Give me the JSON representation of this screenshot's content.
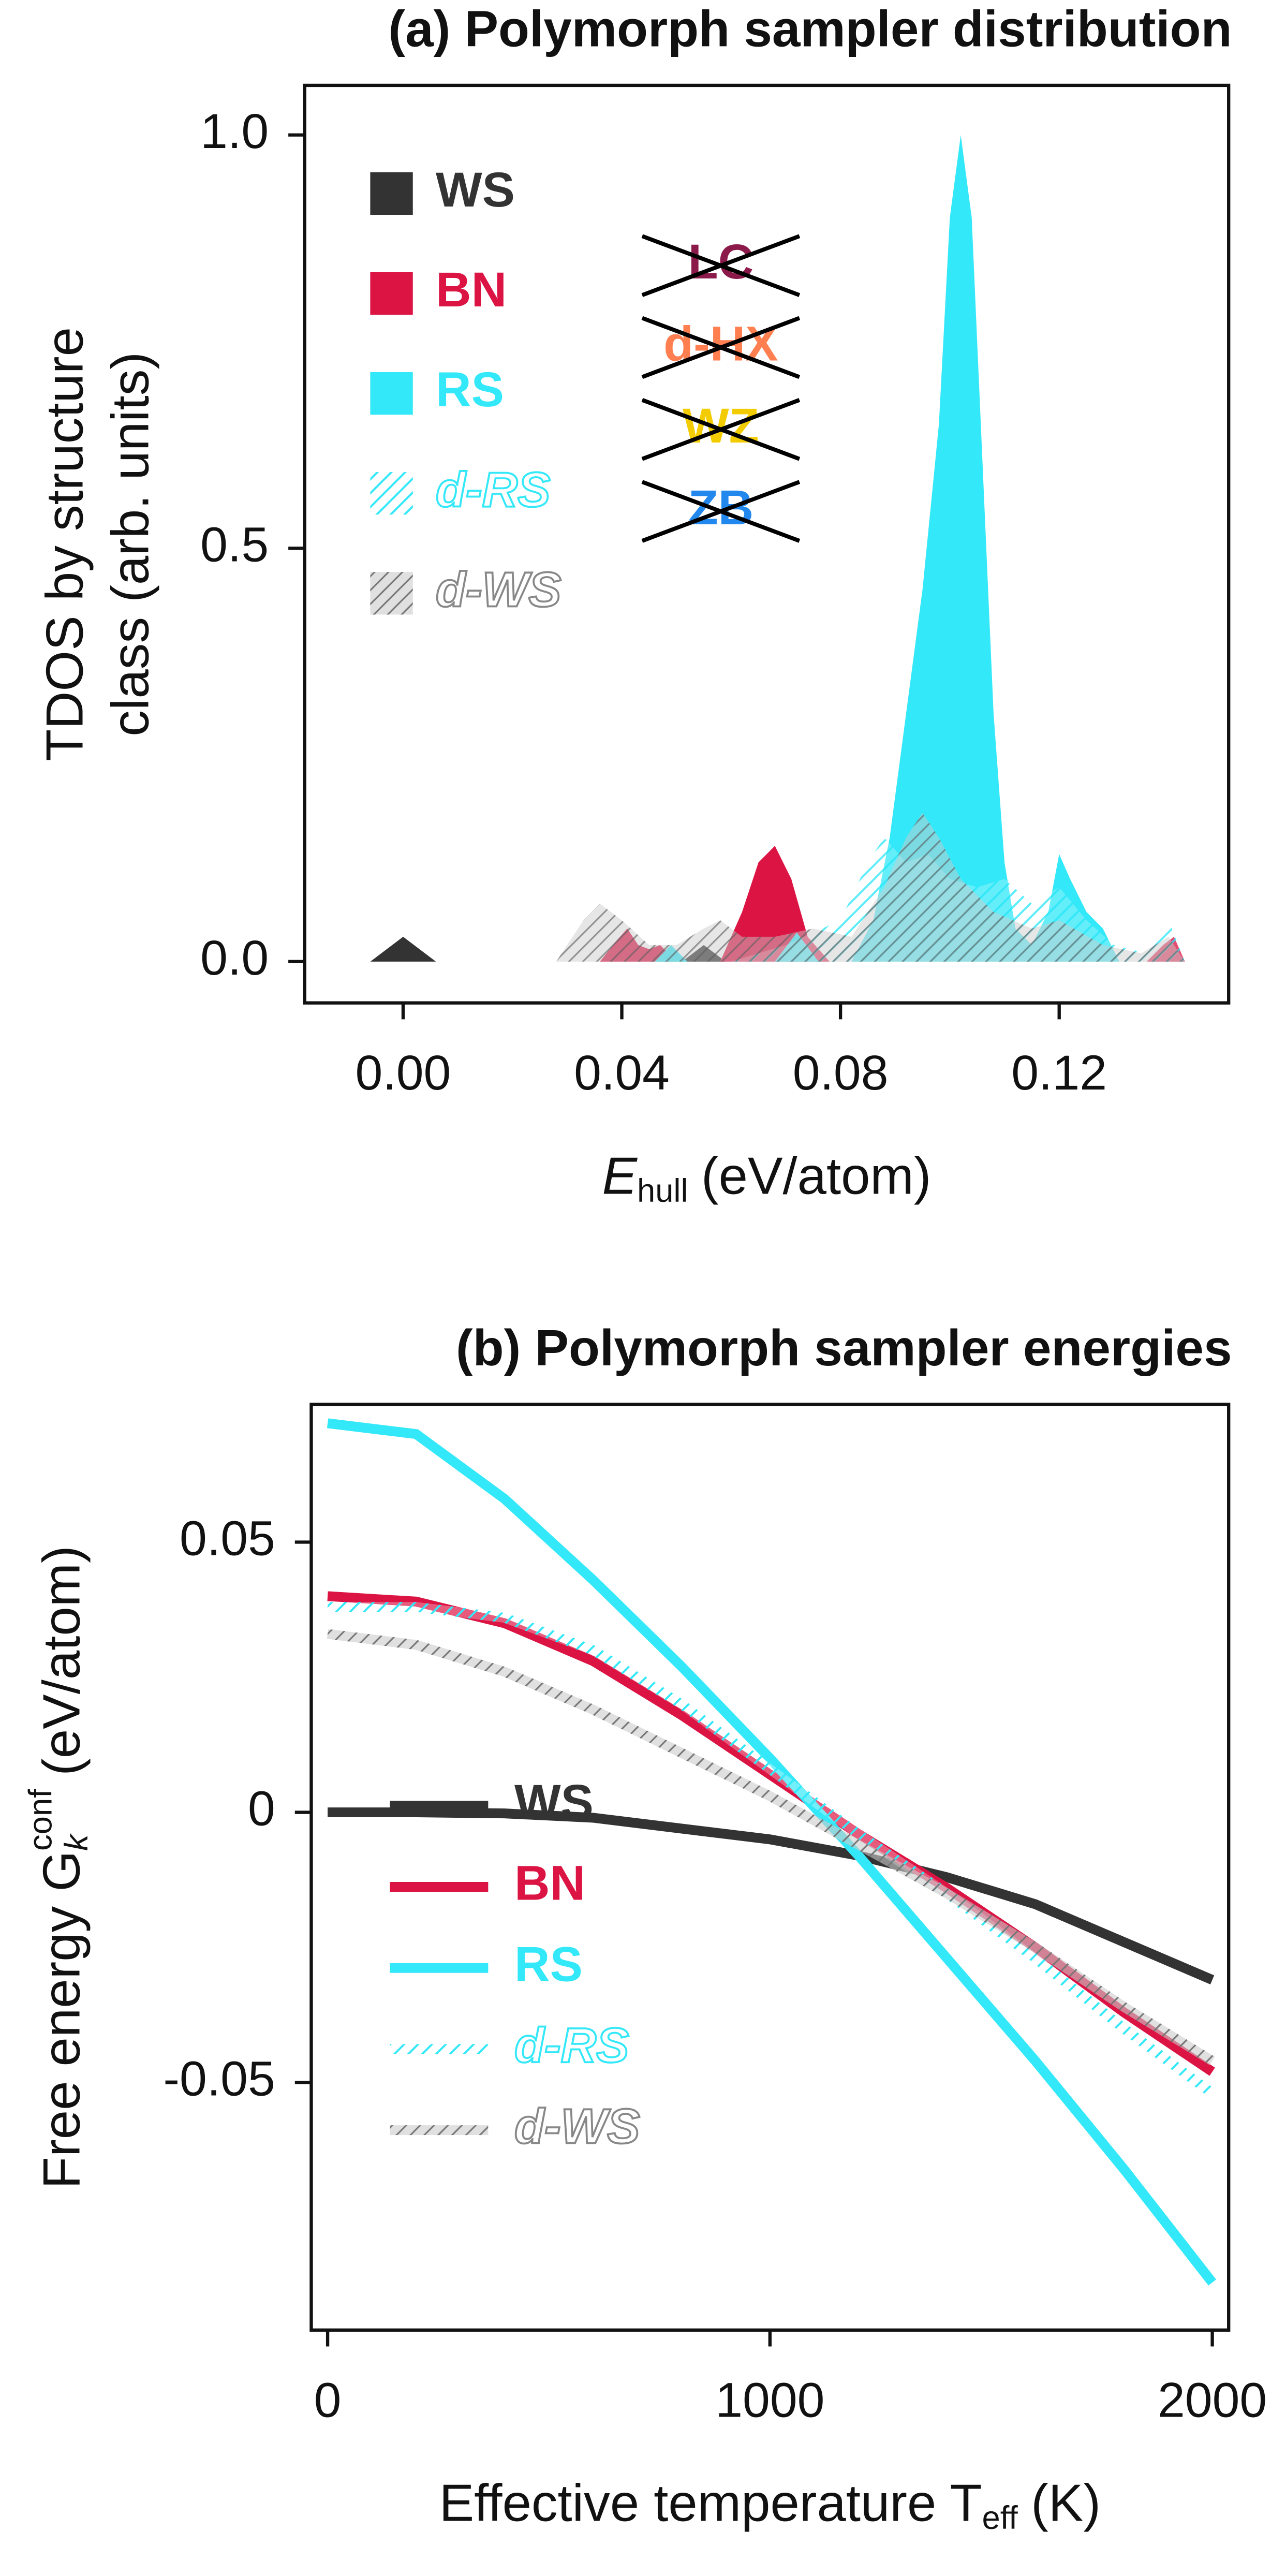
{
  "chart_data": [
    {
      "type": "area",
      "title": "(a) Polymorph sampler distribution",
      "xlabel": {
        "symbol": "E",
        "sub": "hull",
        "unit": "(eV/atom)"
      },
      "ylabel": [
        "TDOS by structure",
        "class (arb. units)"
      ],
      "xlim": [
        -0.018,
        0.151
      ],
      "ylim": [
        -0.05,
        1.06
      ],
      "xticks": [
        {
          "value": 0,
          "label": "0.00"
        },
        {
          "value": 0.04,
          "label": "0.04"
        },
        {
          "value": 0.08,
          "label": "0.08"
        },
        {
          "value": 0.12,
          "label": "0.12"
        }
      ],
      "yticks": [
        {
          "value": 0,
          "label": "0.0"
        },
        {
          "value": 0.5,
          "label": "0.5"
        },
        {
          "value": 1,
          "label": "1.0"
        }
      ],
      "legend": "upper left",
      "series": [
        {
          "name": "WS",
          "color": "#333333",
          "hatched": false,
          "x": [
            -0.006,
            -0.003,
            0,
            0.003,
            0.006,
            null,
            0.051,
            0.053,
            0.055,
            0.057,
            0.059
          ],
          "values": [
            0,
            0.015,
            0.03,
            0.015,
            0,
            null,
            0,
            0.01,
            0.02,
            0.01,
            0
          ]
        },
        {
          "name": "BN",
          "color": "#dc1444",
          "hatched": false,
          "x": [
            0.036,
            0.039,
            0.041,
            0.043,
            0.045,
            0.047,
            0.05,
            null,
            0.058,
            0.062,
            0.065,
            0.068,
            0.071,
            0.074,
            0.078,
            null,
            0.136,
            0.139,
            0.141,
            0.143
          ],
          "values": [
            0,
            0.025,
            0.04,
            0.02,
            0.015,
            0.02,
            0,
            null,
            0,
            0.06,
            0.12,
            0.14,
            0.1,
            0.03,
            0,
            null,
            0,
            0.02,
            0.03,
            0
          ]
        },
        {
          "name": "RS",
          "color": "#33e8f8",
          "hatched": false,
          "x": [
            0.046,
            0.049,
            0.052,
            null,
            0.068,
            0.072,
            0.076,
            null,
            0.082,
            0.086,
            0.089,
            0.092,
            0.095,
            0.098,
            0.1,
            0.102,
            0.104,
            0.106,
            0.108,
            0.11,
            0.112,
            0.115,
            0.118,
            0.12,
            0.122,
            0.125,
            0.128,
            0.131
          ],
          "values": [
            0,
            0.02,
            0,
            null,
            0,
            0.035,
            0,
            null,
            0,
            0.05,
            0.15,
            0.3,
            0.45,
            0.65,
            0.9,
            1.0,
            0.9,
            0.6,
            0.3,
            0.12,
            0.04,
            0.02,
            0.06,
            0.13,
            0.1,
            0.06,
            0.04,
            0
          ]
        },
        {
          "name": "d-RS",
          "color": "#33e8f8",
          "hatched": true,
          "x": [
            0.06,
            0.07,
            0.08,
            0.085,
            0.088,
            0.092,
            0.096,
            0.1,
            0.105,
            0.11,
            0.115,
            0.12,
            0.125,
            0.13,
            0.136,
            0.14,
            0.143
          ],
          "values": [
            0,
            0.02,
            0.05,
            0.12,
            0.15,
            0.12,
            0.13,
            0.1,
            0.09,
            0.1,
            0.07,
            0.09,
            0.05,
            0.02,
            0.01,
            0.05,
            0
          ]
        },
        {
          "name": "d-WS",
          "color": "#888888",
          "hatched": true,
          "x": [
            0.028,
            0.033,
            0.036,
            0.04,
            0.045,
            0.05,
            0.055,
            0.058,
            0.062,
            0.068,
            0.075,
            0.082,
            0.088,
            0.092,
            0.095,
            0.098,
            0.102,
            0.108,
            0.115,
            0.12,
            0.128,
            0.135,
            0.14,
            0.143
          ],
          "values": [
            0,
            0.05,
            0.07,
            0.05,
            0.02,
            0.02,
            0.04,
            0.05,
            0.03,
            0.03,
            0.04,
            0.03,
            0.09,
            0.15,
            0.18,
            0.15,
            0.1,
            0.06,
            0.04,
            0.05,
            0.02,
            0.01,
            0.03,
            0
          ]
        }
      ],
      "excluded": [
        {
          "text": "LC",
          "color": "#8b1a4a"
        },
        {
          "text": "d-HX",
          "color": "#ff7f50"
        },
        {
          "text": "WZ",
          "color": "#f2cc00"
        },
        {
          "text": "ZB",
          "color": "#2288ee"
        }
      ]
    },
    {
      "type": "line",
      "title": "(b) Polymorph sampler energies",
      "xlabel": {
        "symbol": "Effective temperature T",
        "sub": "eff",
        "unit": "(K)"
      },
      "ylabel": {
        "text": "Free energy G",
        "sub": "k",
        "sup": "conf",
        "unit": "(eV/atom)"
      },
      "xlim": [
        -37,
        2037
      ],
      "ylim": [
        -0.0958,
        0.0755
      ],
      "xticks": [
        0,
        1000,
        2000
      ],
      "yticks": [
        {
          "value": -0.05,
          "label": "-0.05"
        },
        0,
        0.05
      ],
      "legend": "lower left",
      "x": [
        0,
        200,
        400,
        600,
        800,
        1000,
        1200,
        1400,
        1600,
        1800,
        2000
      ],
      "series": [
        {
          "name": "WS",
          "color": "#333333",
          "hatched": false,
          "values": [
            0,
            0,
            -0.0002,
            -0.001,
            -0.003,
            -0.005,
            -0.008,
            -0.012,
            -0.017,
            -0.024,
            -0.031
          ]
        },
        {
          "name": "BN",
          "color": "#dc1444",
          "hatched": false,
          "values": [
            0.04,
            0.039,
            0.035,
            0.028,
            0.018,
            0.007,
            -0.004,
            -0.014,
            -0.025,
            -0.037,
            -0.048
          ]
        },
        {
          "name": "RS",
          "color": "#33e8f8",
          "hatched": false,
          "values": [
            0.072,
            0.07,
            0.058,
            0.043,
            0.027,
            0.01,
            -0.008,
            -0.027,
            -0.046,
            -0.066,
            -0.087
          ]
        },
        {
          "name": "d-RS",
          "color": "#33e8f8",
          "hatched": true,
          "values": [
            0.038,
            0.038,
            0.036,
            0.03,
            0.02,
            0.008,
            -0.004,
            -0.015,
            -0.027,
            -0.04,
            -0.052
          ]
        },
        {
          "name": "d-WS",
          "color": "#888888",
          "hatched": true,
          "values": [
            0.033,
            0.031,
            0.026,
            0.019,
            0.011,
            0.003,
            -0.006,
            -0.015,
            -0.025,
            -0.036,
            -0.046
          ]
        }
      ]
    }
  ]
}
